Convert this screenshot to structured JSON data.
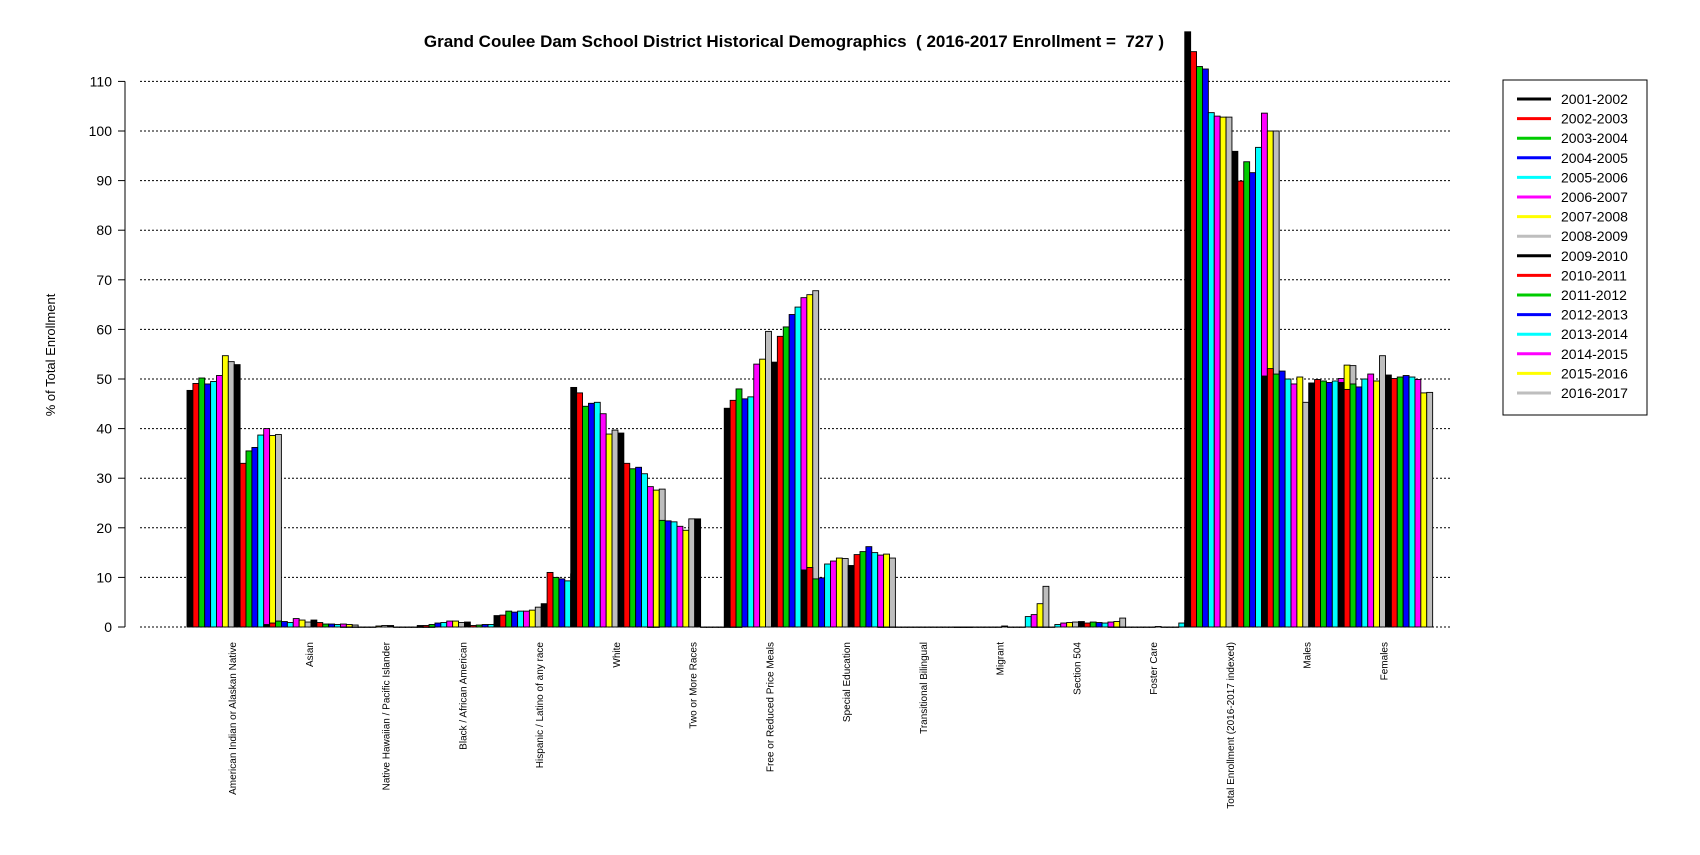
{
  "chart_data": {
    "type": "bar",
    "title": "Grand Coulee Dam School District Historical Demographics  ( 2016-2017 Enrollment =  727 )",
    "xlabel": "",
    "ylabel": "% of Total Enrollment",
    "ylim": [
      0,
      120
    ],
    "yticks": [
      0,
      10,
      20,
      30,
      40,
      50,
      60,
      70,
      80,
      90,
      100,
      110
    ],
    "grid": "horizontal dotted",
    "legend_position": "right",
    "categories": [
      "American Indian or Alaskan Native",
      "Asian",
      "Native Hawaiian / Pacific Islander",
      "Black / African American",
      "Hispanic / Latino of any race",
      "White",
      "Two or More Races",
      "Free or Reduced Price Meals",
      "Special Education",
      "Transitional Bilingual",
      "Migrant",
      "Section 504",
      "Foster Care",
      "Total Enrollment (2016-2017 indexed)",
      "Males",
      "Females"
    ],
    "series": [
      {
        "name": "2001-2002",
        "color": "#000000",
        "values": [
          47.7,
          0.5,
          0.0,
          0.3,
          2.3,
          48.3,
          0.0,
          44.1,
          11.5,
          0.0,
          0.0,
          0.0,
          0.0,
          120.0,
          50.6,
          49.3
        ]
      },
      {
        "name": "2002-2003",
        "color": "#ff0000",
        "values": [
          49.1,
          0.8,
          0.0,
          0.3,
          2.4,
          47.2,
          0.0,
          45.7,
          12.0,
          0.0,
          0.0,
          0.0,
          0.0,
          116.0,
          52.1,
          47.9
        ]
      },
      {
        "name": "2003-2004",
        "color": "#00cc00",
        "values": [
          50.2,
          1.2,
          0.0,
          0.5,
          3.2,
          44.5,
          21.5,
          48.0,
          9.7,
          0.0,
          0.0,
          0.0,
          0.0,
          113.0,
          51.0,
          49.0
        ]
      },
      {
        "name": "2004-2005",
        "color": "#0000ff",
        "values": [
          49.0,
          1.1,
          0.0,
          0.8,
          3.0,
          45.1,
          21.4,
          46.0,
          9.9,
          0.0,
          0.0,
          0.0,
          0.0,
          112.5,
          51.6,
          48.4
        ]
      },
      {
        "name": "2005-2006",
        "color": "#00ffff",
        "values": [
          49.5,
          0.9,
          0.0,
          0.9,
          3.2,
          45.3,
          21.2,
          46.4,
          12.7,
          0.0,
          0.0,
          0.5,
          0.0,
          103.7,
          50.0,
          50.0
        ]
      },
      {
        "name": "2006-2007",
        "color": "#ff00ff",
        "values": [
          50.7,
          1.7,
          0.0,
          1.2,
          3.2,
          43.0,
          20.3,
          53.0,
          13.3,
          0.0,
          0.0,
          0.8,
          0.0,
          103.0,
          49.0,
          51.0
        ]
      },
      {
        "name": "2007-2008",
        "color": "#ffff00",
        "values": [
          54.7,
          1.4,
          0.2,
          1.2,
          3.4,
          38.9,
          19.5,
          54.0,
          13.9,
          0.0,
          0.0,
          0.9,
          0.0,
          102.8,
          50.4,
          49.6
        ]
      },
      {
        "name": "2008-2009",
        "color": "#bebebe",
        "values": [
          53.5,
          1.0,
          0.3,
          0.9,
          4.0,
          39.7,
          21.8,
          59.6,
          13.8,
          0.0,
          0.0,
          1.0,
          0.0,
          102.8,
          45.3,
          54.7
        ]
      },
      {
        "name": "2009-2010",
        "color": "#000000",
        "values": [
          52.9,
          1.4,
          0.3,
          1.0,
          4.7,
          39.1,
          21.8,
          53.4,
          12.4,
          0.0,
          0.2,
          1.1,
          0.1,
          95.9,
          49.2,
          50.8
        ]
      },
      {
        "name": "2010-2011",
        "color": "#ff0000",
        "values": [
          33.0,
          0.9,
          0.0,
          0.3,
          11.0,
          33.0,
          0.0,
          58.6,
          14.6,
          0.0,
          0.0,
          0.8,
          0.0,
          89.9,
          49.9,
          50.1
        ]
      },
      {
        "name": "2011-2012",
        "color": "#00cc00",
        "values": [
          35.5,
          0.6,
          0.0,
          0.4,
          10.0,
          31.9,
          0.0,
          60.5,
          15.2,
          0.0,
          0.0,
          1.0,
          0.0,
          93.8,
          49.6,
          50.4
        ]
      },
      {
        "name": "2012-2013",
        "color": "#0000ff",
        "values": [
          36.2,
          0.6,
          0.0,
          0.5,
          9.7,
          32.2,
          0.0,
          63.0,
          16.2,
          0.0,
          0.0,
          0.9,
          0.0,
          91.6,
          49.3,
          50.7
        ]
      },
      {
        "name": "2013-2014",
        "color": "#00ffff",
        "values": [
          38.7,
          0.5,
          0.0,
          0.5,
          9.3,
          30.9,
          0.0,
          64.5,
          15.0,
          0.0,
          2.1,
          0.8,
          0.8,
          96.7,
          49.6,
          50.4
        ]
      },
      {
        "name": "2014-2015",
        "color": "#ff00ff",
        "values": [
          40.0,
          0.6,
          0.0,
          0.7,
          10.7,
          28.3,
          0.0,
          66.4,
          14.5,
          0.0,
          2.5,
          1.0,
          1.3,
          103.6,
          50.1,
          49.9
        ]
      },
      {
        "name": "2015-2016",
        "color": "#ffff00",
        "values": [
          38.6,
          0.5,
          0.0,
          0.6,
          10.3,
          27.6,
          0.0,
          67.0,
          14.7,
          0.0,
          4.7,
          1.1,
          0.9,
          100.0,
          52.8,
          47.2
        ]
      },
      {
        "name": "2016-2017",
        "color": "#bebebe",
        "values": [
          38.8,
          0.4,
          0.0,
          0.5,
          10.6,
          27.8,
          0.0,
          67.8,
          13.9,
          0.0,
          8.2,
          1.8,
          1.2,
          100.0,
          52.7,
          47.3
        ]
      }
    ]
  }
}
